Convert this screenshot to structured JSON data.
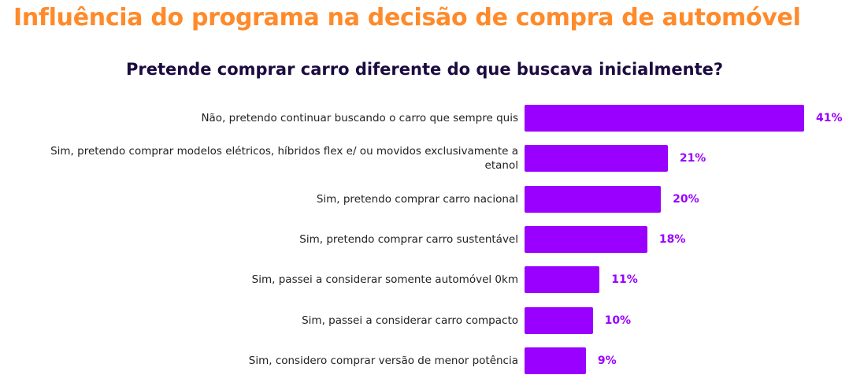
{
  "chart_data": {
    "type": "bar",
    "orientation": "horizontal",
    "title": "Influência do programa na decisão de compra de automóvel",
    "subtitle": "Pretende comprar carro diferente do que buscava inicialmente?",
    "categories": [
      "Não, pretendo continuar buscando o carro que sempre quis",
      "Sim, pretendo comprar modelos elétricos, híbridos flex e/ ou movidos exclusivamente a etanol",
      "Sim, pretendo comprar carro nacional",
      "Sim, pretendo comprar carro sustentável",
      "Sim, passei a considerar somente automóvel 0km",
      "Sim, passei a considerar carro compacto",
      "Sim, considero comprar versão de menor potência"
    ],
    "values": [
      41,
      21,
      20,
      18,
      11,
      10,
      9
    ],
    "value_labels": [
      "41%",
      "21%",
      "20%",
      "18%",
      "11%",
      "10%",
      "9%"
    ],
    "xlabel": "",
    "ylabel": "",
    "xlim": [
      0,
      41
    ],
    "grid": false,
    "bar_color": "#9900FF",
    "title_color": "#FF8A2A"
  }
}
